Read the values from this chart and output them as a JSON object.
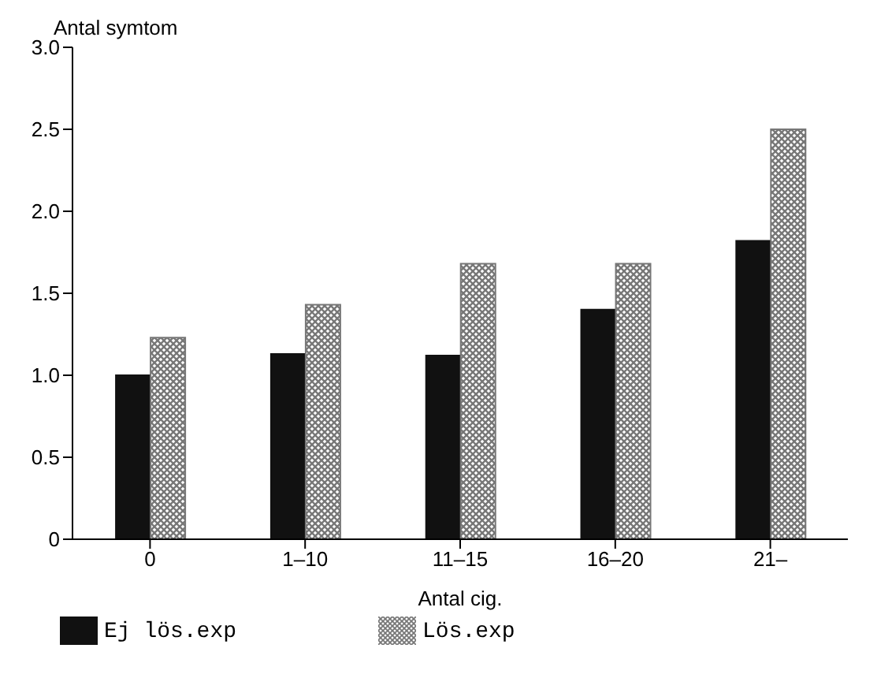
{
  "chart_data": {
    "type": "bar",
    "ylabel": "Antal symtom",
    "xlabel": "Antal cig.",
    "categories": [
      "0",
      "1–10",
      "11–15",
      "16–20",
      "21–"
    ],
    "series": [
      {
        "name": "Ej lös.exp",
        "color": "#111111",
        "values": [
          1.0,
          1.13,
          1.12,
          1.4,
          1.82
        ]
      },
      {
        "name": "Lös.exp",
        "color": "#777777",
        "values": [
          1.23,
          1.43,
          1.68,
          1.68,
          2.5
        ]
      }
    ],
    "ylim": [
      0,
      3
    ],
    "yticks": [
      {
        "value": 0,
        "label": "0"
      },
      {
        "value": 0.5,
        "label": "0.5"
      },
      {
        "value": 1,
        "label": "1.0"
      },
      {
        "value": 1.5,
        "label": "1.5"
      },
      {
        "value": 2,
        "label": "2.0"
      },
      {
        "value": 2.5,
        "label": "2.5"
      },
      {
        "value": 3,
        "label": "3.0"
      }
    ],
    "legend": "bottom",
    "grid": false
  }
}
